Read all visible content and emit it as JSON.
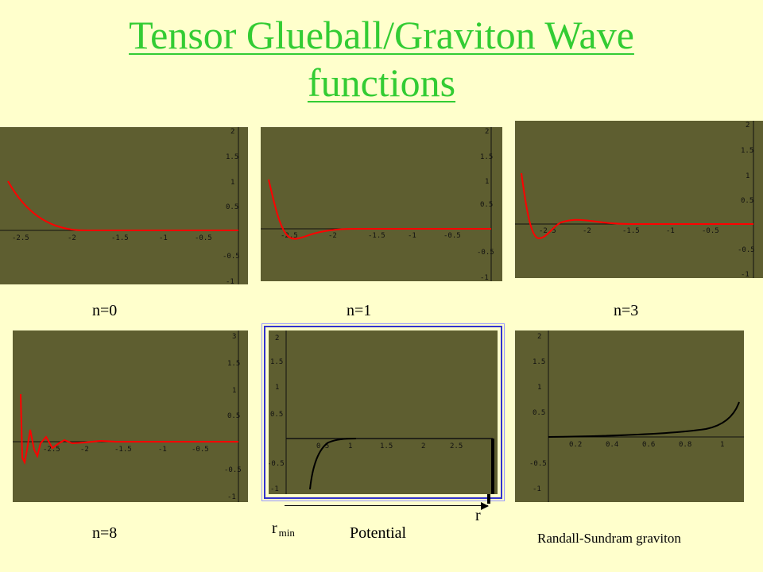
{
  "title": {
    "line1": "Tensor Glueball/Graviton Wave",
    "line2": "functions"
  },
  "colors": {
    "background": "#ffffcc",
    "title": "#33cc33",
    "panel": "#5e5e30",
    "curve_red": "#ff0000",
    "curve_black": "#000000",
    "frame": "#3333cc"
  },
  "plots": [
    {
      "id": "n0",
      "label": "n=0",
      "xticks": [
        "-2.5",
        "-2",
        "-1.5",
        "-1",
        "-0.5"
      ],
      "yticks": [
        "2",
        "1.5",
        "1",
        "0.5",
        "-0.5",
        "-1"
      ]
    },
    {
      "id": "n1",
      "label": "n=1",
      "xticks": [
        "-2.5",
        "-2",
        "-1.5",
        "-1",
        "-0.5"
      ],
      "yticks": [
        "2",
        "1.5",
        "1",
        "0.5",
        "-0.5",
        "-1"
      ]
    },
    {
      "id": "n3",
      "label": "n=3",
      "xticks": [
        "-2.5",
        "-2",
        "-1.5",
        "-1",
        "-0.5"
      ],
      "yticks": [
        "2",
        "1.5",
        "1",
        "0.5",
        "-0.5",
        "-1"
      ]
    },
    {
      "id": "n8",
      "label": "n=8",
      "xticks": [
        "-2.5",
        "-2",
        "-1.5",
        "-1",
        "-0.5"
      ],
      "yticks": [
        "3",
        "1.5",
        "1",
        "0.5",
        "-0.5",
        "-1"
      ]
    },
    {
      "id": "potential",
      "label": "Potential",
      "xticks": [
        "0.5",
        "1",
        "1.5",
        "2",
        "2.5"
      ],
      "yticks": [
        "2",
        "1.5",
        "1",
        "0.5",
        "-0.5",
        "-1"
      ]
    },
    {
      "id": "rs",
      "label": "Randall-Sundram graviton",
      "xticks": [
        "0.2",
        "0.4",
        "0.6",
        "0.8",
        "1"
      ],
      "yticks": [
        "2",
        "1.5",
        "1",
        "0.5",
        "-0.5",
        "-1"
      ]
    }
  ],
  "potential_annotations": {
    "r_min_base": "r",
    "r_min_sub": "min",
    "r": "r"
  }
}
